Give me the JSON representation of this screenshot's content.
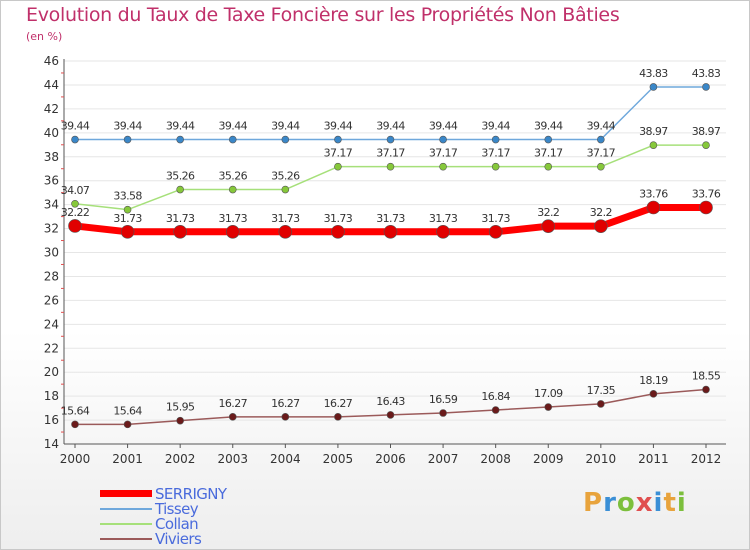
{
  "title": "Evolution du Taux de Taxe Foncière sur les Propriétés Non Bâties",
  "unit": "(en %)",
  "logo": {
    "text": "Proxiti",
    "letters": [
      "P",
      "r",
      "o",
      "x",
      "i",
      "t",
      "i"
    ],
    "colors": [
      "#e8a33c",
      "#3a8fd6",
      "#7cbf3c",
      "#e04f4f",
      "#3a8fd6",
      "#e8a33c",
      "#7cbf3c"
    ]
  },
  "chart_data": {
    "type": "line",
    "title": "Evolution du Taux de Taxe Foncière sur les Propriétés Non Bâties",
    "ylabel": "(en %)",
    "xlabel": "",
    "x": [
      "2000",
      "2001",
      "2002",
      "2003",
      "2004",
      "2005",
      "2006",
      "2007",
      "2008",
      "2009",
      "2010",
      "2011",
      "2012"
    ],
    "ylim": [
      14,
      46
    ],
    "yticks": [
      14,
      16,
      18,
      20,
      22,
      24,
      26,
      28,
      30,
      32,
      34,
      36,
      38,
      40,
      42,
      44,
      46
    ],
    "grid": "horizontal",
    "legend_position": "bottom-left",
    "series": [
      {
        "name": "SERRIGNY",
        "color": "#ff0000",
        "marker_color": "#e00000",
        "values": [
          32.22,
          31.73,
          31.73,
          31.73,
          31.73,
          31.73,
          31.73,
          31.73,
          31.73,
          32.2,
          32.2,
          33.76,
          33.76
        ],
        "labels": [
          "32.22",
          "31.73",
          "31.73",
          "31.73",
          "31.73",
          "31.73",
          "31.73",
          "31.73",
          "31.73",
          "32.2",
          "32.2",
          "33.76",
          "33.76"
        ]
      },
      {
        "name": "Tissey",
        "color": "#6fa8dc",
        "marker_color": "#3a87c8",
        "values": [
          39.44,
          39.44,
          39.44,
          39.44,
          39.44,
          39.44,
          39.44,
          39.44,
          39.44,
          39.44,
          39.44,
          43.83,
          43.83
        ],
        "labels": [
          "39.44",
          "39.44",
          "39.44",
          "39.44",
          "39.44",
          "39.44",
          "39.44",
          "39.44",
          "39.44",
          "39.44",
          "39.44",
          "43.83",
          "43.83"
        ]
      },
      {
        "name": "Collan",
        "color": "#a6e07a",
        "marker_color": "#86c83a",
        "values": [
          34.07,
          33.58,
          35.26,
          35.26,
          35.26,
          37.17,
          37.17,
          37.17,
          37.17,
          37.17,
          37.17,
          38.97,
          38.97
        ],
        "labels": [
          "34.07",
          "33.58",
          "35.26",
          "35.26",
          "35.26",
          "37.17",
          "37.17",
          "37.17",
          "37.17",
          "37.17",
          "37.17",
          "38.97",
          "38.97"
        ]
      },
      {
        "name": "Viviers",
        "color": "#9b5a5a",
        "marker_color": "#6a1a1a",
        "values": [
          15.64,
          15.64,
          15.95,
          16.27,
          16.27,
          16.27,
          16.43,
          16.59,
          16.84,
          17.09,
          17.35,
          18.19,
          18.55
        ],
        "labels": [
          "15.64",
          "15.64",
          "15.95",
          "16.27",
          "16.27",
          "16.27",
          "16.43",
          "16.59",
          "16.84",
          "17.09",
          "17.35",
          "18.19",
          "18.55"
        ]
      }
    ]
  }
}
